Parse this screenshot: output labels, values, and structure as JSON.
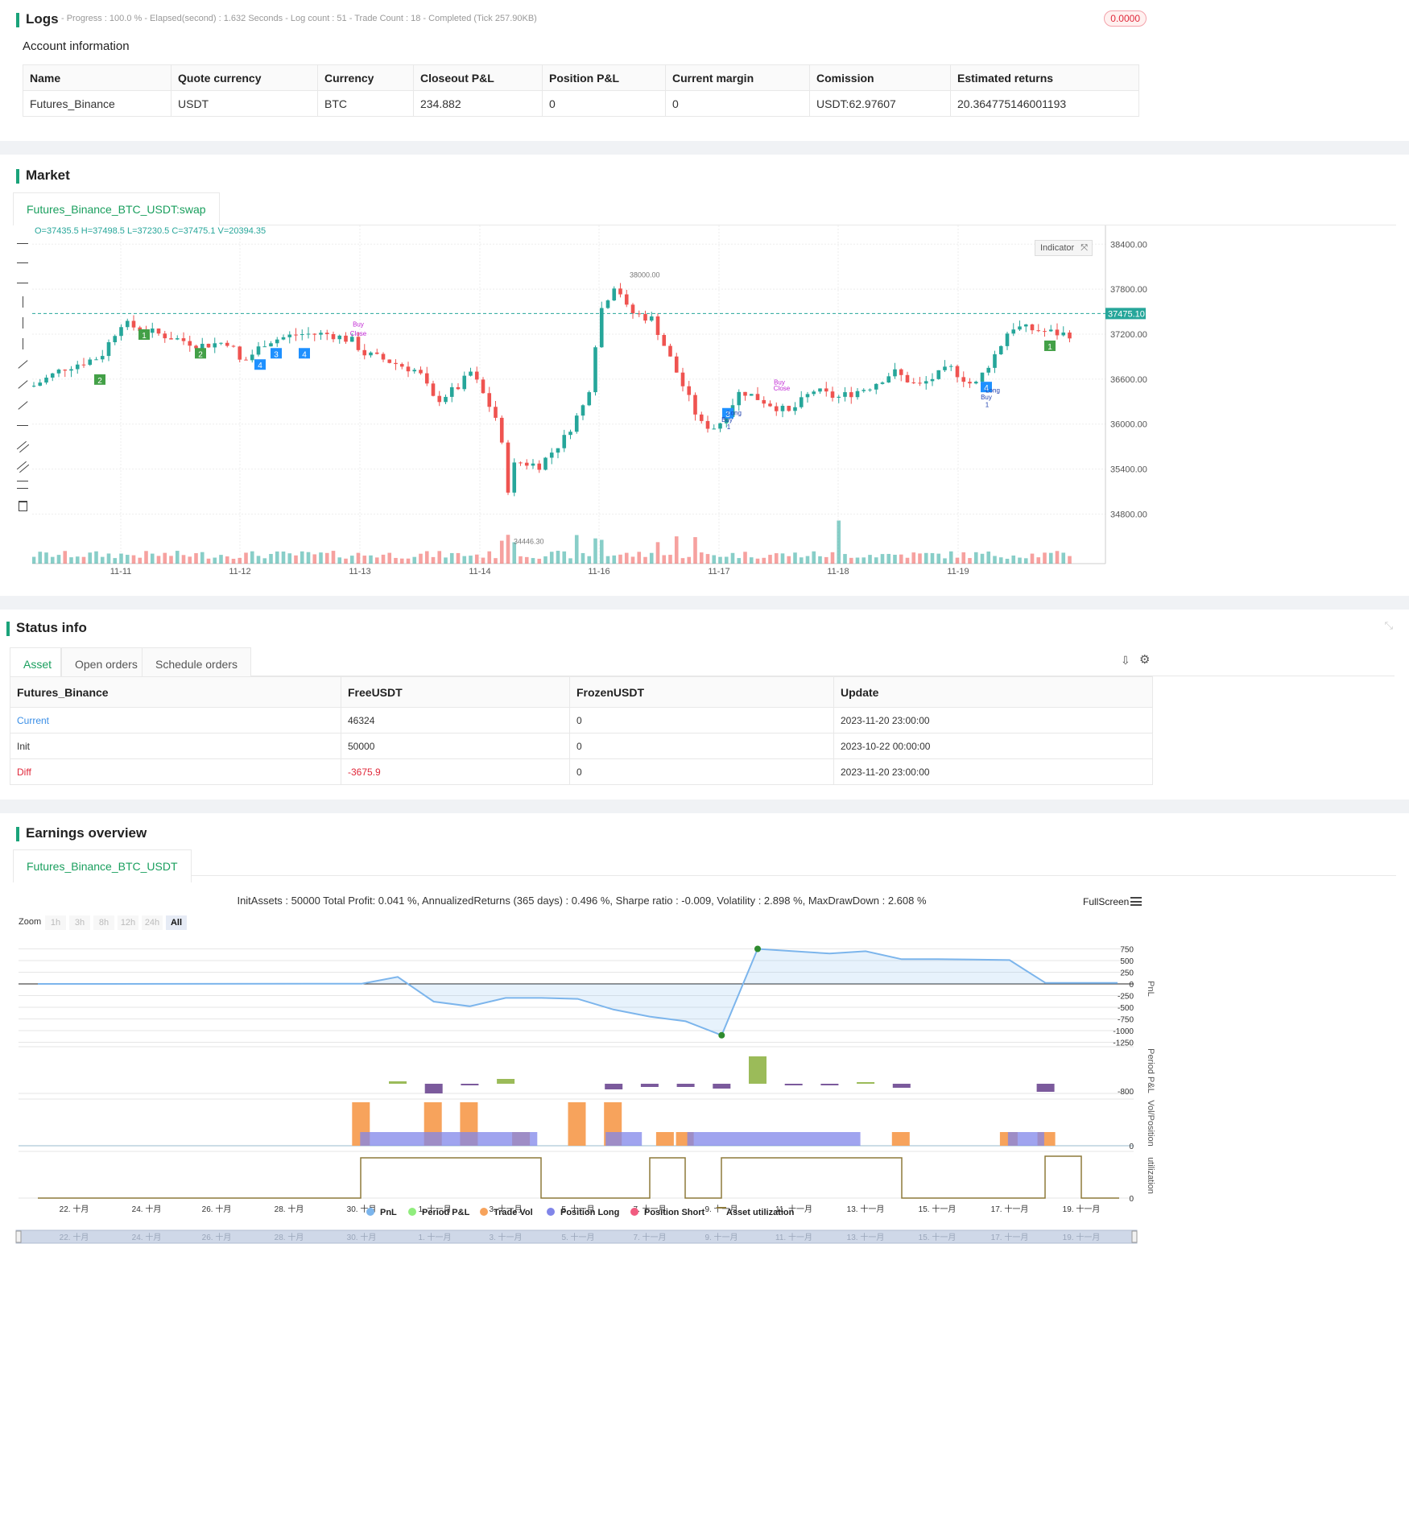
{
  "logs": {
    "title": "Logs",
    "summary": "- Progress : 100.0 % - Elapsed(second) : 1.632  Seconds - Log count : 51 - Trade Count : 18 - Completed (Tick 257.90KB)",
    "badge": "0.0000"
  },
  "account": {
    "title": "Account information",
    "headers": [
      "Name",
      "Quote currency",
      "Currency",
      "Closeout P&L",
      "Position P&L",
      "Current margin",
      "Comission",
      "Estimated returns"
    ],
    "row": [
      "Futures_Binance",
      "USDT",
      "BTC",
      "234.882",
      "0",
      "0",
      "USDT:62.97607",
      "20.364775146001193"
    ]
  },
  "market": {
    "title": "Market",
    "tab": "Futures_Binance_BTC_USDT:swap",
    "ohlc": "O=37435.5 H=37498.5 L=37230.5 C=37475.1 V=20394.35",
    "indicator_btn": "Indicator",
    "last_price": "37475.10",
    "high_label": "38000.00",
    "low_label": "34446.30",
    "y_ticks": [
      "38400.00",
      "37800.00",
      "37200.00",
      "36600.00",
      "36000.00",
      "35400.00",
      "34800.00"
    ],
    "x_ticks": [
      "11-11",
      "11-12",
      "11-13",
      "11-14",
      "11-16",
      "11-17",
      "11-18",
      "11-19"
    ],
    "markers": [
      "1",
      "2",
      "2",
      "4",
      "3",
      "4",
      "4",
      "3",
      "1"
    ],
    "trade_labels": [
      "Buy",
      "Close",
      "Buy",
      "Close",
      "Buy",
      "Buy",
      "1",
      "1",
      "Long",
      "Long"
    ],
    "colors": {
      "up": "#26a69a",
      "down": "#ef5350",
      "accent": "#1a9f5e"
    }
  },
  "status": {
    "title": "Status info",
    "tabs": [
      "Asset",
      "Open orders",
      "Schedule orders"
    ],
    "headers": [
      "Futures_Binance",
      "FreeUSDT",
      "FrozenUSDT",
      "Update"
    ],
    "rows": [
      [
        "Current",
        "46324",
        "0",
        "2023-11-20 23:00:00"
      ],
      [
        "Init",
        "50000",
        "0",
        "2023-10-22 00:00:00"
      ],
      [
        "Diff",
        "-3675.9",
        "0",
        "2023-11-20 23:00:00"
      ]
    ]
  },
  "earnings": {
    "title": "Earnings overview",
    "tab": "Futures_Binance_BTC_USDT",
    "summary": "InitAssets : 50000 Total Profit: 0.041 %, AnnualizedReturns (365 days) : 0.496 %, Sharpe ratio : -0.009, Volatility : 2.898 %, MaxDrawDown : 2.608 %",
    "fullscreen": "FullScreen",
    "zoom_label": "Zoom",
    "zoom_options": [
      "1h",
      "3h",
      "8h",
      "12h",
      "24h",
      "All"
    ],
    "pnl_ticks": [
      "750",
      "500",
      "250",
      "0",
      "-250",
      "-500",
      "-750",
      "-1000",
      "-1250"
    ],
    "period_tick": "-800",
    "vol_tick": "0",
    "util_tick": "0",
    "axis_titles": [
      "PnL",
      "Period P&L",
      "Vol/Position",
      "utilization"
    ],
    "x_ticks": [
      "22. 十月",
      "24. 十月",
      "26. 十月",
      "28. 十月",
      "30. 十月",
      "1. 十一月",
      "3. 十一月",
      "5. 十一月",
      "7. 十一月",
      "9. 十一月",
      "11. 十一月",
      "13. 十一月",
      "15. 十一月",
      "17. 十一月",
      "19. 十一月"
    ],
    "legend": [
      "PnL",
      "Period P&L",
      "Trade Vol",
      "Position Long",
      "Position Short",
      "Asset utilization"
    ],
    "legend_colors": [
      "#7cb5ec",
      "#90ed7d",
      "#f7a35c",
      "#8085e9",
      "#f15c80",
      "#8d7a3a"
    ]
  }
}
